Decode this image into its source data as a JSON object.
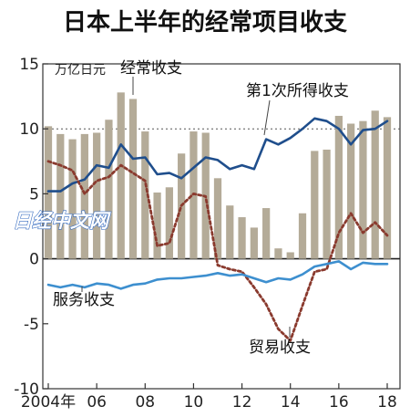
{
  "chart_data": {
    "type": "bar",
    "title": "日本上半年的经常项目收支",
    "unit_label": "万亿日元",
    "x": [
      2004,
      2004.5,
      2005,
      2005.5,
      2006,
      2006.5,
      2007,
      2007.5,
      2008,
      2008.5,
      2009,
      2009.5,
      2010,
      2010.5,
      2011,
      2011.5,
      2012,
      2012.5,
      2013,
      2013.5,
      2014,
      2014.5,
      2015,
      2015.5,
      2016,
      2016.5,
      2017,
      2017.5,
      2018
    ],
    "x_tick_labels": [
      {
        "x": 2004,
        "label": "2004年"
      },
      {
        "x": 2006,
        "label": "06"
      },
      {
        "x": 2008,
        "label": "08"
      },
      {
        "x": 2010,
        "label": "10"
      },
      {
        "x": 2012,
        "label": "12"
      },
      {
        "x": 2014,
        "label": "14"
      },
      {
        "x": 2016,
        "label": "16"
      },
      {
        "x": 2018,
        "label": "18"
      }
    ],
    "y_ticks": [
      15,
      10,
      5,
      0,
      -5,
      -10
    ],
    "ylim": [
      -10,
      15
    ],
    "reference_line": {
      "y": 10,
      "style": "dotted"
    },
    "series": [
      {
        "name": "经常收支",
        "kind": "bar",
        "color": "#b4ab98",
        "values": [
          10.2,
          9.6,
          9.2,
          9.6,
          9.7,
          10.7,
          12.8,
          12.3,
          9.8,
          5.1,
          5.5,
          8.1,
          9.8,
          9.7,
          6.2,
          4.1,
          3.2,
          2.4,
          3.9,
          0.8,
          0.5,
          3.5,
          8.3,
          8.4,
          11.0,
          10.4,
          10.6,
          11.4,
          10.9
        ]
      },
      {
        "name": "第1次所得收支",
        "kind": "line",
        "color": "#1f4e8c",
        "values": [
          5.2,
          5.2,
          5.8,
          6.1,
          7.2,
          7.0,
          8.8,
          7.7,
          7.8,
          6.5,
          6.6,
          6.2,
          7.0,
          7.8,
          7.6,
          6.9,
          7.2,
          6.9,
          9.2,
          8.8,
          9.3,
          10.0,
          10.8,
          10.6,
          10.0,
          8.8,
          9.9,
          10.0,
          10.6
        ]
      },
      {
        "name": "贸易收支",
        "kind": "line",
        "color": "#8a3a2e",
        "values": [
          7.5,
          7.2,
          6.8,
          5.0,
          6.0,
          6.3,
          7.2,
          6.6,
          6.0,
          1.0,
          1.2,
          4.1,
          5.0,
          4.8,
          -0.5,
          -0.8,
          -1.0,
          -2.2,
          -3.5,
          -5.4,
          -6.3,
          -3.6,
          -1.0,
          -0.8,
          2.0,
          3.5,
          2.0,
          2.8,
          1.8
        ]
      },
      {
        "name": "服务收支",
        "kind": "line",
        "color": "#3d8fcf",
        "values": [
          -2.0,
          -2.2,
          -2.0,
          -2.2,
          -1.9,
          -2.0,
          -2.3,
          -2.0,
          -1.9,
          -1.6,
          -1.5,
          -1.5,
          -1.4,
          -1.3,
          -1.1,
          -1.3,
          -1.2,
          -1.5,
          -1.8,
          -1.5,
          -1.6,
          -1.2,
          -0.6,
          -0.4,
          -0.2,
          -0.8,
          -0.3,
          -0.4,
          -0.4
        ]
      }
    ],
    "watermark": "日经中文网"
  }
}
